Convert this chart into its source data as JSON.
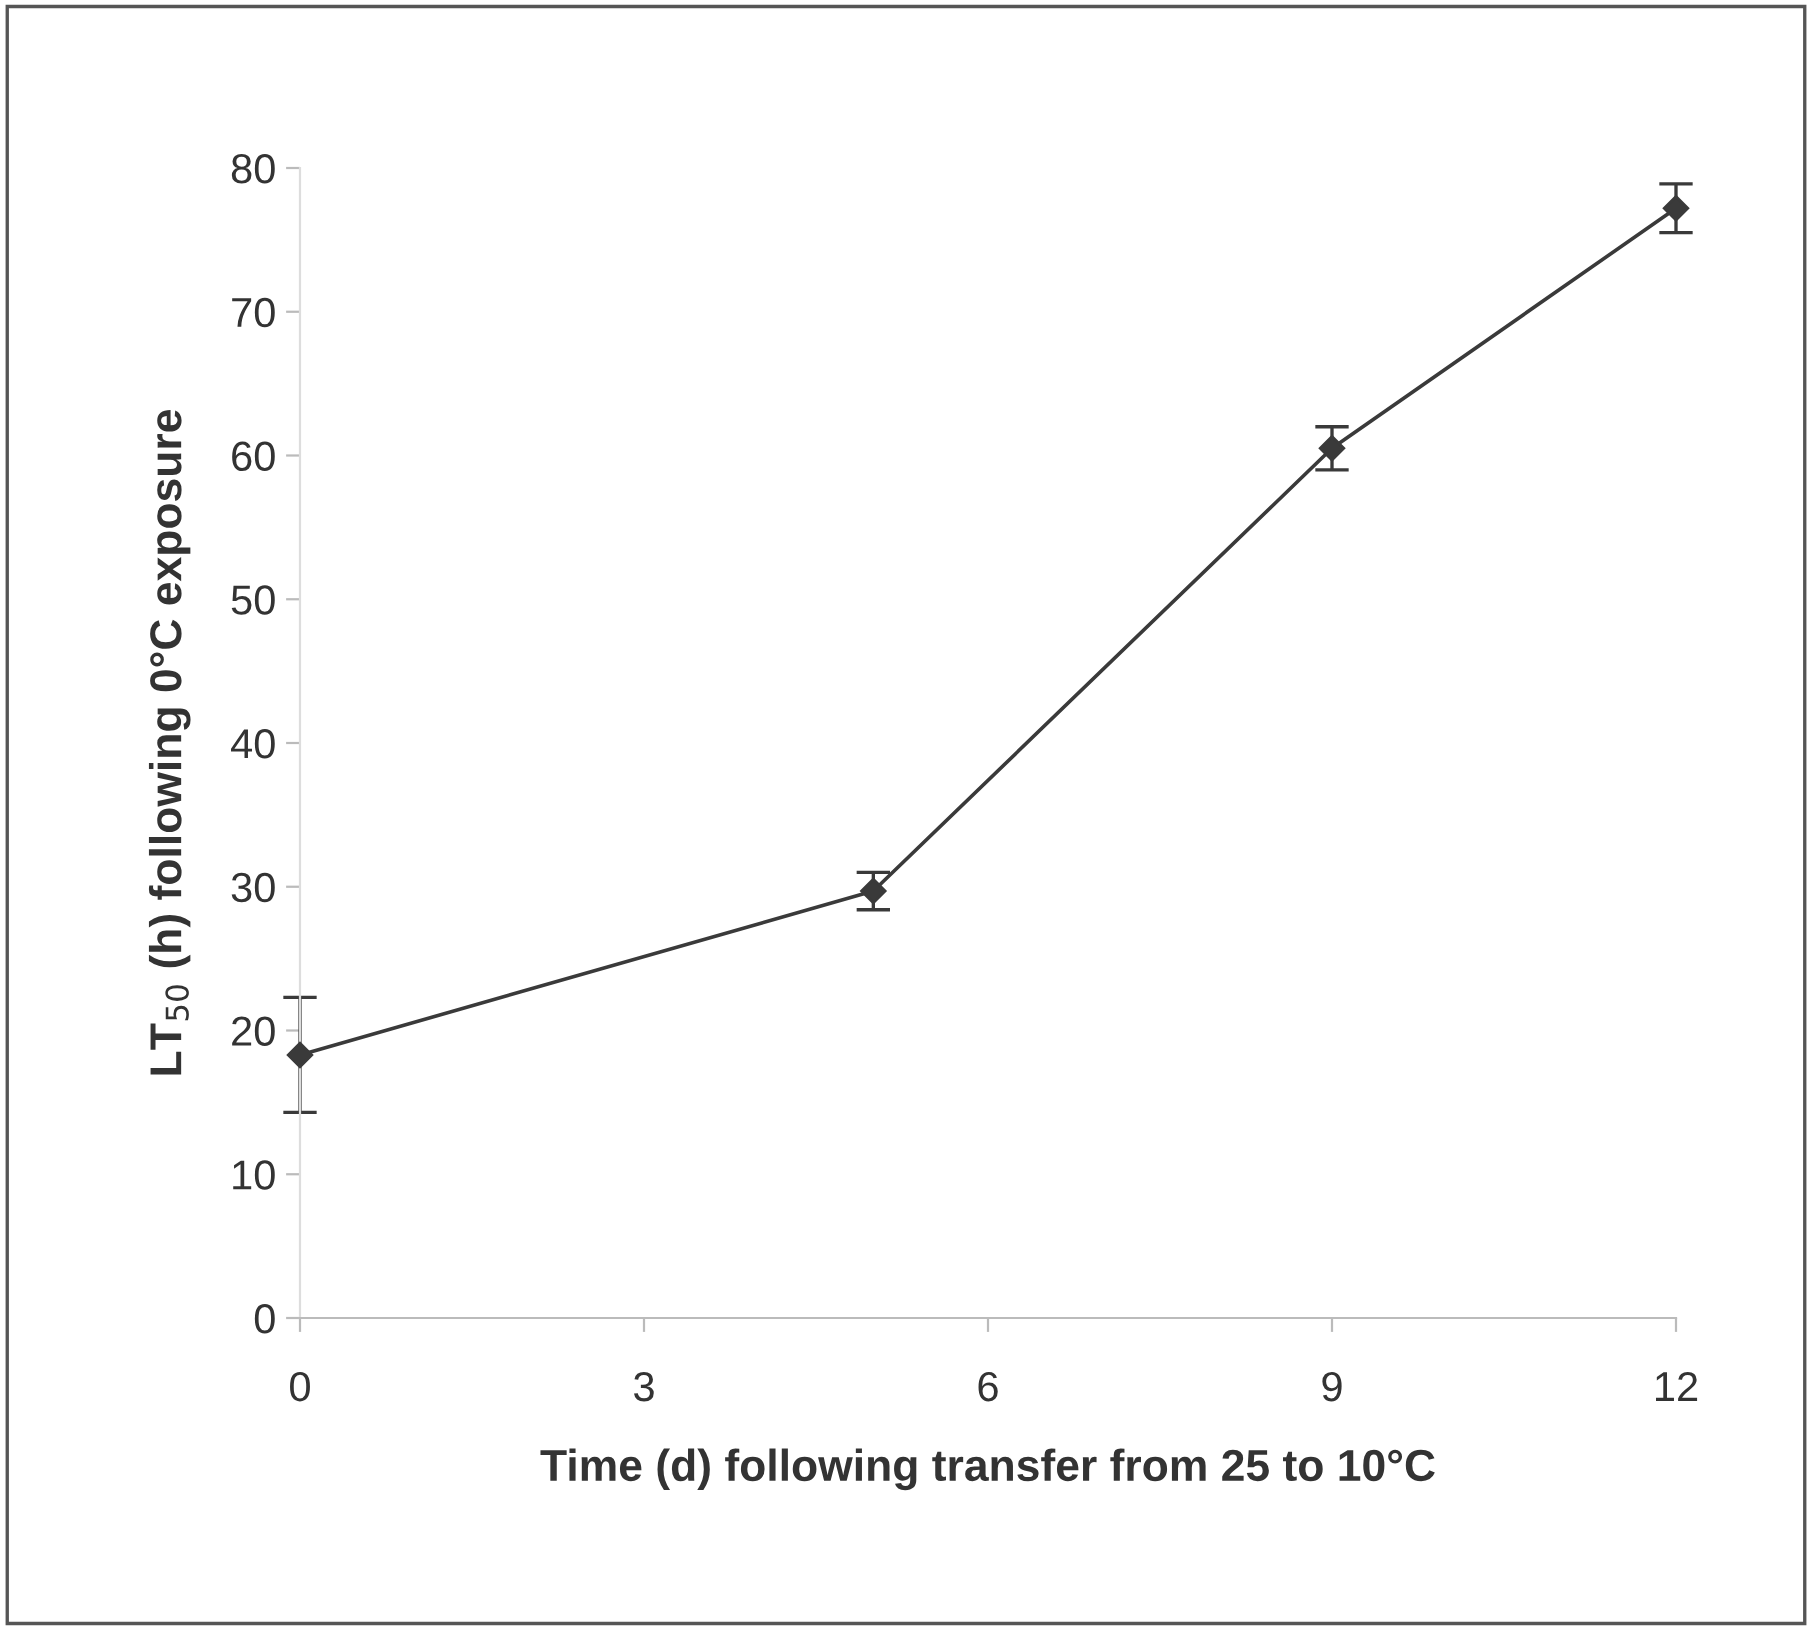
{
  "chart_data": {
    "type": "line",
    "xlabel": "Time (d) following transfer from 25 to 10°C",
    "ylabel": "LT$_{50}$ (h) following 0°C exposure",
    "x": [
      0,
      5,
      9,
      12
    ],
    "series": [
      {
        "color": "#3a3a3a",
        "values": [
          18.3,
          29.7,
          60.5,
          77.2
        ],
        "errors": [
          4.0,
          1.3,
          1.5,
          1.7
        ]
      }
    ],
    "xlim": [
      0,
      12
    ],
    "xticks": [
      0,
      3,
      6,
      9,
      12
    ],
    "ylim": [
      0,
      80
    ],
    "yticks": [
      0,
      10,
      20,
      30,
      40,
      50,
      60,
      70,
      80
    ],
    "marker": "diamond",
    "line_style": "solid",
    "grid": false,
    "legend": false
  }
}
